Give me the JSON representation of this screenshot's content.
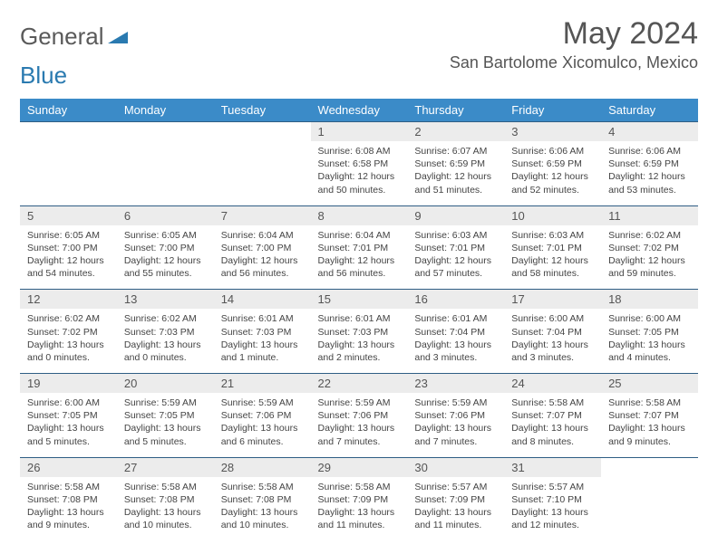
{
  "logo": {
    "part1": "General",
    "part2": "Blue"
  },
  "title": "May 2024",
  "location": "San Bartolome Xicomulco, Mexico",
  "colors": {
    "header_bg": "#3b8bc8",
    "header_text": "#ffffff",
    "daynum_bg": "#ececec",
    "row_border": "#2f5e84",
    "logo_gray": "#5a5a5a",
    "logo_blue": "#2a7ab0"
  },
  "weekdays": [
    "Sunday",
    "Monday",
    "Tuesday",
    "Wednesday",
    "Thursday",
    "Friday",
    "Saturday"
  ],
  "weeks": [
    [
      {
        "n": "",
        "lines": []
      },
      {
        "n": "",
        "lines": []
      },
      {
        "n": "",
        "lines": []
      },
      {
        "n": "1",
        "lines": [
          "Sunrise: 6:08 AM",
          "Sunset: 6:58 PM",
          "Daylight: 12 hours and 50 minutes."
        ]
      },
      {
        "n": "2",
        "lines": [
          "Sunrise: 6:07 AM",
          "Sunset: 6:59 PM",
          "Daylight: 12 hours and 51 minutes."
        ]
      },
      {
        "n": "3",
        "lines": [
          "Sunrise: 6:06 AM",
          "Sunset: 6:59 PM",
          "Daylight: 12 hours and 52 minutes."
        ]
      },
      {
        "n": "4",
        "lines": [
          "Sunrise: 6:06 AM",
          "Sunset: 6:59 PM",
          "Daylight: 12 hours and 53 minutes."
        ]
      }
    ],
    [
      {
        "n": "5",
        "lines": [
          "Sunrise: 6:05 AM",
          "Sunset: 7:00 PM",
          "Daylight: 12 hours and 54 minutes."
        ]
      },
      {
        "n": "6",
        "lines": [
          "Sunrise: 6:05 AM",
          "Sunset: 7:00 PM",
          "Daylight: 12 hours and 55 minutes."
        ]
      },
      {
        "n": "7",
        "lines": [
          "Sunrise: 6:04 AM",
          "Sunset: 7:00 PM",
          "Daylight: 12 hours and 56 minutes."
        ]
      },
      {
        "n": "8",
        "lines": [
          "Sunrise: 6:04 AM",
          "Sunset: 7:01 PM",
          "Daylight: 12 hours and 56 minutes."
        ]
      },
      {
        "n": "9",
        "lines": [
          "Sunrise: 6:03 AM",
          "Sunset: 7:01 PM",
          "Daylight: 12 hours and 57 minutes."
        ]
      },
      {
        "n": "10",
        "lines": [
          "Sunrise: 6:03 AM",
          "Sunset: 7:01 PM",
          "Daylight: 12 hours and 58 minutes."
        ]
      },
      {
        "n": "11",
        "lines": [
          "Sunrise: 6:02 AM",
          "Sunset: 7:02 PM",
          "Daylight: 12 hours and 59 minutes."
        ]
      }
    ],
    [
      {
        "n": "12",
        "lines": [
          "Sunrise: 6:02 AM",
          "Sunset: 7:02 PM",
          "Daylight: 13 hours and 0 minutes."
        ]
      },
      {
        "n": "13",
        "lines": [
          "Sunrise: 6:02 AM",
          "Sunset: 7:03 PM",
          "Daylight: 13 hours and 0 minutes."
        ]
      },
      {
        "n": "14",
        "lines": [
          "Sunrise: 6:01 AM",
          "Sunset: 7:03 PM",
          "Daylight: 13 hours and 1 minute."
        ]
      },
      {
        "n": "15",
        "lines": [
          "Sunrise: 6:01 AM",
          "Sunset: 7:03 PM",
          "Daylight: 13 hours and 2 minutes."
        ]
      },
      {
        "n": "16",
        "lines": [
          "Sunrise: 6:01 AM",
          "Sunset: 7:04 PM",
          "Daylight: 13 hours and 3 minutes."
        ]
      },
      {
        "n": "17",
        "lines": [
          "Sunrise: 6:00 AM",
          "Sunset: 7:04 PM",
          "Daylight: 13 hours and 3 minutes."
        ]
      },
      {
        "n": "18",
        "lines": [
          "Sunrise: 6:00 AM",
          "Sunset: 7:05 PM",
          "Daylight: 13 hours and 4 minutes."
        ]
      }
    ],
    [
      {
        "n": "19",
        "lines": [
          "Sunrise: 6:00 AM",
          "Sunset: 7:05 PM",
          "Daylight: 13 hours and 5 minutes."
        ]
      },
      {
        "n": "20",
        "lines": [
          "Sunrise: 5:59 AM",
          "Sunset: 7:05 PM",
          "Daylight: 13 hours and 5 minutes."
        ]
      },
      {
        "n": "21",
        "lines": [
          "Sunrise: 5:59 AM",
          "Sunset: 7:06 PM",
          "Daylight: 13 hours and 6 minutes."
        ]
      },
      {
        "n": "22",
        "lines": [
          "Sunrise: 5:59 AM",
          "Sunset: 7:06 PM",
          "Daylight: 13 hours and 7 minutes."
        ]
      },
      {
        "n": "23",
        "lines": [
          "Sunrise: 5:59 AM",
          "Sunset: 7:06 PM",
          "Daylight: 13 hours and 7 minutes."
        ]
      },
      {
        "n": "24",
        "lines": [
          "Sunrise: 5:58 AM",
          "Sunset: 7:07 PM",
          "Daylight: 13 hours and 8 minutes."
        ]
      },
      {
        "n": "25",
        "lines": [
          "Sunrise: 5:58 AM",
          "Sunset: 7:07 PM",
          "Daylight: 13 hours and 9 minutes."
        ]
      }
    ],
    [
      {
        "n": "26",
        "lines": [
          "Sunrise: 5:58 AM",
          "Sunset: 7:08 PM",
          "Daylight: 13 hours and 9 minutes."
        ]
      },
      {
        "n": "27",
        "lines": [
          "Sunrise: 5:58 AM",
          "Sunset: 7:08 PM",
          "Daylight: 13 hours and 10 minutes."
        ]
      },
      {
        "n": "28",
        "lines": [
          "Sunrise: 5:58 AM",
          "Sunset: 7:08 PM",
          "Daylight: 13 hours and 10 minutes."
        ]
      },
      {
        "n": "29",
        "lines": [
          "Sunrise: 5:58 AM",
          "Sunset: 7:09 PM",
          "Daylight: 13 hours and 11 minutes."
        ]
      },
      {
        "n": "30",
        "lines": [
          "Sunrise: 5:57 AM",
          "Sunset: 7:09 PM",
          "Daylight: 13 hours and 11 minutes."
        ]
      },
      {
        "n": "31",
        "lines": [
          "Sunrise: 5:57 AM",
          "Sunset: 7:10 PM",
          "Daylight: 13 hours and 12 minutes."
        ]
      },
      {
        "n": "",
        "lines": []
      }
    ]
  ]
}
